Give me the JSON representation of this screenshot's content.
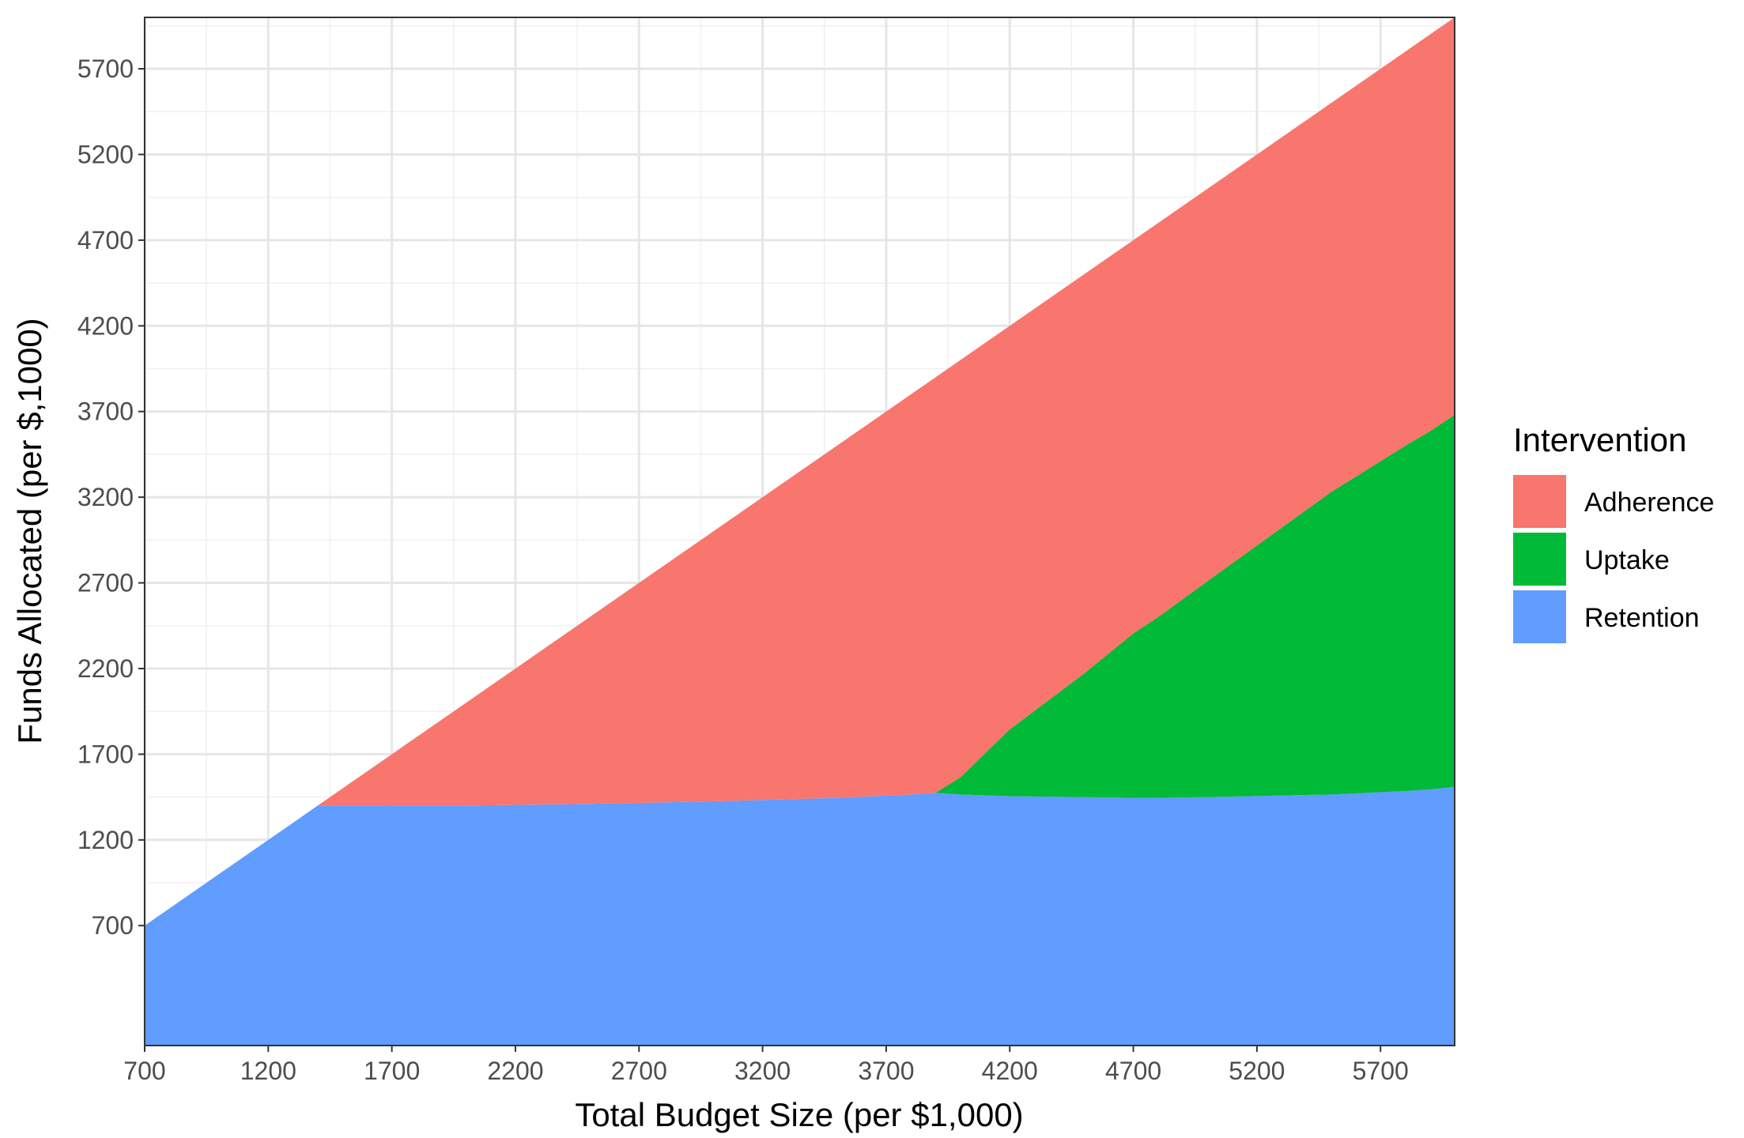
{
  "chart_data": {
    "type": "area",
    "stacked": true,
    "title": "",
    "xlabel": "Total Budget Size (per $1,000)",
    "ylabel": "Funds Allocated (per $,1000)",
    "xlim": [
      700,
      6000
    ],
    "ylim": [
      0,
      6000
    ],
    "xticks": [
      700,
      1200,
      1700,
      2200,
      2700,
      3200,
      3700,
      4200,
      4700,
      5200,
      5700
    ],
    "yticks": [
      700,
      1200,
      1700,
      2200,
      2700,
      3200,
      3700,
      4200,
      4700,
      5200,
      5700
    ],
    "grid": true,
    "legend": {
      "title": "Intervention",
      "position": "right",
      "entries": [
        "Adherence",
        "Uptake",
        "Retention"
      ]
    },
    "x": [
      700,
      1000,
      1400,
      1500,
      2000,
      2500,
      3000,
      3500,
      3800,
      3900,
      4000,
      4200,
      4500,
      4700,
      4800,
      5000,
      5500,
      5800,
      5900,
      6000
    ],
    "series": [
      {
        "name": "Retention",
        "color": "#619CFF",
        "values": [
          700,
          1000,
          1400,
          1400,
          1400,
          1410,
          1425,
          1445,
          1465,
          1475,
          1465,
          1455,
          1450,
          1445,
          1445,
          1450,
          1465,
          1485,
          1495,
          1510
        ]
      },
      {
        "name": "Uptake",
        "color": "#00BA38",
        "values": [
          0,
          0,
          0,
          0,
          0,
          0,
          0,
          0,
          0,
          0,
          100,
          390,
          720,
          960,
          1055,
          1260,
          1765,
          2015,
          2090,
          2170
        ]
      },
      {
        "name": "Adherence",
        "color": "#F8766D",
        "values": [
          0,
          0,
          0,
          100,
          600,
          1090,
          1575,
          2055,
          2335,
          2425,
          2435,
          2355,
          2330,
          2295,
          2300,
          2290,
          2270,
          2300,
          2315,
          2320
        ]
      }
    ]
  }
}
